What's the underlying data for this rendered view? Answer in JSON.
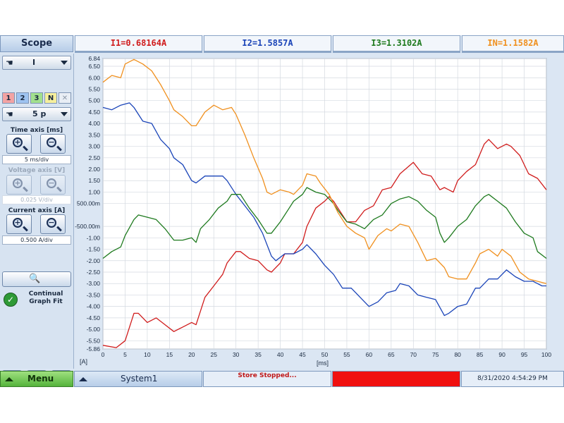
{
  "header": {
    "title": "Scope",
    "readouts": [
      {
        "label": "I1=0.68164A",
        "color": "#d01c1c"
      },
      {
        "label": "I2=1.5857A",
        "color": "#1a44b8"
      },
      {
        "label": "I3=1.3102A",
        "color": "#1e7a1e"
      },
      {
        "label": "IN=1.1582A",
        "color": "#f0901e"
      }
    ]
  },
  "sidebar": {
    "signal_select": "I",
    "channels": [
      "1",
      "2",
      "3",
      "N"
    ],
    "channel_colors": [
      "#f3a3a3",
      "#9ec3f0",
      "#a2e08e",
      "#f6ef9c"
    ],
    "period_select": "5 p",
    "time_axis": {
      "label": "Time axis [ms]",
      "value": "5 ms/div"
    },
    "voltage_axis": {
      "label": "Voltage axis [V]",
      "value": "0.025 V/div"
    },
    "current_axis": {
      "label": "Current axis [A]",
      "value": "0.500 A/div"
    },
    "continual_fit_label": "Continual Graph Fit"
  },
  "bottom": {
    "menu_label": "Menu",
    "system_label": "System1",
    "status_text": "Store Stopped...",
    "datetime": "8/31/2020 4:54:29 PM"
  },
  "chart_data": {
    "type": "line",
    "xlabel": "[ms]",
    "ylabel": "[A]",
    "xlim": [
      0,
      100
    ],
    "ylim": [
      -5.86,
      6.84
    ],
    "x_ticks": [
      "0",
      "5",
      "10",
      "15",
      "20",
      "25",
      "30",
      "35",
      "40",
      "45",
      "50",
      "55",
      "60",
      "65",
      "70",
      "75",
      "80",
      "85",
      "90",
      "95",
      "100"
    ],
    "y_ticks": [
      {
        "v": 6.84,
        "label": "6.84"
      },
      {
        "v": 6.5,
        "label": "6.50"
      },
      {
        "v": 6.0,
        "label": "6.00"
      },
      {
        "v": 5.5,
        "label": "5.50"
      },
      {
        "v": 5.0,
        "label": "5.00"
      },
      {
        "v": 4.5,
        "label": "4.50"
      },
      {
        "v": 4.0,
        "label": "4.00"
      },
      {
        "v": 3.5,
        "label": "3.50"
      },
      {
        "v": 3.0,
        "label": "3.00"
      },
      {
        "v": 2.5,
        "label": "2.50"
      },
      {
        "v": 2.0,
        "label": "2.00"
      },
      {
        "v": 1.5,
        "label": "1.50"
      },
      {
        "v": 1.0,
        "label": "1.00"
      },
      {
        "v": 0.5,
        "label": "500.00m"
      },
      {
        "v": -0.5,
        "label": "-500.00m"
      },
      {
        "v": -1.0,
        "label": "-1.00"
      },
      {
        "v": -1.5,
        "label": "-1.50"
      },
      {
        "v": -2.0,
        "label": "-2.00"
      },
      {
        "v": -2.5,
        "label": "-2.50"
      },
      {
        "v": -3.0,
        "label": "-3.00"
      },
      {
        "v": -3.5,
        "label": "-3.50"
      },
      {
        "v": -4.0,
        "label": "-4.00"
      },
      {
        "v": -4.5,
        "label": "-4.50"
      },
      {
        "v": -5.0,
        "label": "-5.00"
      },
      {
        "v": -5.5,
        "label": "-5.50"
      },
      {
        "v": -5.86,
        "label": "-5.86"
      }
    ],
    "grid": true,
    "series": [
      {
        "color": "#d01c1c",
        "values": [
          [
            0,
            -5.7
          ],
          [
            3,
            -5.8
          ],
          [
            5,
            -5.5
          ],
          [
            7,
            -4.3
          ],
          [
            8,
            -4.3
          ],
          [
            10,
            -4.7
          ],
          [
            12,
            -4.5
          ],
          [
            14,
            -4.8
          ],
          [
            16,
            -5.1
          ],
          [
            18,
            -4.9
          ],
          [
            20,
            -4.7
          ],
          [
            21,
            -4.8
          ],
          [
            23,
            -3.6
          ],
          [
            25,
            -3.1
          ],
          [
            27,
            -2.6
          ],
          [
            28,
            -2.1
          ],
          [
            30,
            -1.6
          ],
          [
            31,
            -1.6
          ],
          [
            33,
            -1.9
          ],
          [
            35,
            -2.0
          ],
          [
            37,
            -2.4
          ],
          [
            38,
            -2.5
          ],
          [
            40,
            -2.1
          ],
          [
            41,
            -1.7
          ],
          [
            43,
            -1.7
          ],
          [
            45,
            -1.2
          ],
          [
            46,
            -0.5
          ],
          [
            48,
            0.3
          ],
          [
            50,
            0.6
          ],
          [
            51,
            0.8
          ],
          [
            52,
            0.6
          ],
          [
            53,
            0.3
          ],
          [
            55,
            -0.3
          ],
          [
            57,
            -0.3
          ],
          [
            59,
            0.2
          ],
          [
            61,
            0.4
          ],
          [
            63,
            1.1
          ],
          [
            65,
            1.2
          ],
          [
            67,
            1.8
          ],
          [
            70,
            2.3
          ],
          [
            72,
            1.8
          ],
          [
            74,
            1.7
          ],
          [
            76,
            1.1
          ],
          [
            77,
            1.2
          ],
          [
            79,
            1.0
          ],
          [
            80,
            1.5
          ],
          [
            82,
            1.9
          ],
          [
            84,
            2.2
          ],
          [
            86,
            3.1
          ],
          [
            87,
            3.3
          ],
          [
            89,
            2.9
          ],
          [
            91,
            3.1
          ],
          [
            92,
            3.0
          ],
          [
            94,
            2.6
          ],
          [
            96,
            1.8
          ],
          [
            98,
            1.6
          ],
          [
            100,
            1.1
          ]
        ]
      },
      {
        "color": "#1a44b8",
        "values": [
          [
            0,
            4.7
          ],
          [
            2,
            4.6
          ],
          [
            4,
            4.8
          ],
          [
            6,
            4.9
          ],
          [
            7,
            4.7
          ],
          [
            9,
            4.1
          ],
          [
            11,
            4.0
          ],
          [
            13,
            3.3
          ],
          [
            15,
            2.9
          ],
          [
            16,
            2.5
          ],
          [
            18,
            2.2
          ],
          [
            20,
            1.5
          ],
          [
            21,
            1.4
          ],
          [
            23,
            1.7
          ],
          [
            25,
            1.7
          ],
          [
            27,
            1.7
          ],
          [
            28,
            1.5
          ],
          [
            30,
            0.9
          ],
          [
            32,
            0.4
          ],
          [
            34,
            -0.1
          ],
          [
            36,
            -0.8
          ],
          [
            38,
            -1.8
          ],
          [
            39,
            -2.0
          ],
          [
            41,
            -1.7
          ],
          [
            43,
            -1.7
          ],
          [
            45,
            -1.5
          ],
          [
            46,
            -1.3
          ],
          [
            48,
            -1.7
          ],
          [
            50,
            -2.2
          ],
          [
            52,
            -2.6
          ],
          [
            54,
            -3.2
          ],
          [
            56,
            -3.2
          ],
          [
            58,
            -3.6
          ],
          [
            60,
            -4.0
          ],
          [
            62,
            -3.8
          ],
          [
            64,
            -3.4
          ],
          [
            66,
            -3.3
          ],
          [
            67,
            -3.0
          ],
          [
            69,
            -3.1
          ],
          [
            71,
            -3.5
          ],
          [
            73,
            -3.6
          ],
          [
            75,
            -3.7
          ],
          [
            77,
            -4.4
          ],
          [
            78,
            -4.3
          ],
          [
            80,
            -4.0
          ],
          [
            82,
            -3.9
          ],
          [
            84,
            -3.2
          ],
          [
            85,
            -3.2
          ],
          [
            87,
            -2.8
          ],
          [
            89,
            -2.8
          ],
          [
            91,
            -2.4
          ],
          [
            93,
            -2.7
          ],
          [
            95,
            -2.9
          ],
          [
            97,
            -2.9
          ],
          [
            99,
            -3.1
          ],
          [
            100,
            -3.1
          ]
        ]
      },
      {
        "color": "#1e7a1e",
        "values": [
          [
            0,
            -1.9
          ],
          [
            2,
            -1.6
          ],
          [
            4,
            -1.4
          ],
          [
            5,
            -0.9
          ],
          [
            7,
            -0.2
          ],
          [
            8,
            0.0
          ],
          [
            10,
            -0.1
          ],
          [
            12,
            -0.2
          ],
          [
            14,
            -0.6
          ],
          [
            16,
            -1.1
          ],
          [
            18,
            -1.1
          ],
          [
            20,
            -1.0
          ],
          [
            21,
            -1.2
          ],
          [
            22,
            -0.6
          ],
          [
            24,
            -0.2
          ],
          [
            26,
            0.3
          ],
          [
            28,
            0.6
          ],
          [
            29,
            0.9
          ],
          [
            31,
            0.9
          ],
          [
            33,
            0.3
          ],
          [
            35,
            -0.2
          ],
          [
            37,
            -0.8
          ],
          [
            38,
            -0.8
          ],
          [
            40,
            -0.3
          ],
          [
            42,
            0.3
          ],
          [
            43,
            0.6
          ],
          [
            45,
            0.9
          ],
          [
            46,
            1.2
          ],
          [
            48,
            1.0
          ],
          [
            50,
            0.9
          ],
          [
            52,
            0.5
          ],
          [
            53,
            0.2
          ],
          [
            55,
            -0.3
          ],
          [
            57,
            -0.4
          ],
          [
            59,
            -0.6
          ],
          [
            61,
            -0.2
          ],
          [
            63,
            0.0
          ],
          [
            65,
            0.5
          ],
          [
            67,
            0.7
          ],
          [
            69,
            0.8
          ],
          [
            71,
            0.6
          ],
          [
            73,
            0.2
          ],
          [
            75,
            -0.1
          ],
          [
            76,
            -0.8
          ],
          [
            77,
            -1.2
          ],
          [
            78,
            -1.0
          ],
          [
            80,
            -0.5
          ],
          [
            82,
            -0.2
          ],
          [
            84,
            0.4
          ],
          [
            86,
            0.8
          ],
          [
            87,
            0.9
          ],
          [
            89,
            0.6
          ],
          [
            91,
            0.3
          ],
          [
            93,
            -0.3
          ],
          [
            95,
            -0.8
          ],
          [
            97,
            -1.0
          ],
          [
            98,
            -1.6
          ],
          [
            100,
            -1.9
          ]
        ]
      },
      {
        "color": "#f0901e",
        "values": [
          [
            0,
            5.8
          ],
          [
            2,
            6.1
          ],
          [
            4,
            6.0
          ],
          [
            5,
            6.6
          ],
          [
            7,
            6.8
          ],
          [
            9,
            6.6
          ],
          [
            11,
            6.3
          ],
          [
            13,
            5.7
          ],
          [
            15,
            5.0
          ],
          [
            16,
            4.6
          ],
          [
            18,
            4.3
          ],
          [
            20,
            3.9
          ],
          [
            21,
            3.9
          ],
          [
            23,
            4.5
          ],
          [
            25,
            4.8
          ],
          [
            27,
            4.6
          ],
          [
            29,
            4.7
          ],
          [
            30,
            4.4
          ],
          [
            32,
            3.5
          ],
          [
            34,
            2.5
          ],
          [
            36,
            1.6
          ],
          [
            37,
            1.0
          ],
          [
            38,
            0.9
          ],
          [
            40,
            1.1
          ],
          [
            42,
            1.0
          ],
          [
            43,
            0.9
          ],
          [
            45,
            1.3
          ],
          [
            46,
            1.8
          ],
          [
            48,
            1.7
          ],
          [
            49,
            1.4
          ],
          [
            51,
            0.9
          ],
          [
            53,
            0.1
          ],
          [
            55,
            -0.5
          ],
          [
            57,
            -0.8
          ],
          [
            59,
            -1.0
          ],
          [
            60,
            -1.5
          ],
          [
            62,
            -0.9
          ],
          [
            64,
            -0.6
          ],
          [
            65,
            -0.7
          ],
          [
            67,
            -0.4
          ],
          [
            69,
            -0.5
          ],
          [
            71,
            -1.2
          ],
          [
            73,
            -2.0
          ],
          [
            75,
            -1.9
          ],
          [
            77,
            -2.3
          ],
          [
            78,
            -2.7
          ],
          [
            80,
            -2.8
          ],
          [
            82,
            -2.8
          ],
          [
            84,
            -2.1
          ],
          [
            85,
            -1.7
          ],
          [
            87,
            -1.5
          ],
          [
            89,
            -1.8
          ],
          [
            90,
            -1.5
          ],
          [
            92,
            -1.8
          ],
          [
            94,
            -2.5
          ],
          [
            96,
            -2.8
          ],
          [
            98,
            -2.9
          ],
          [
            100,
            -3.0
          ]
        ]
      }
    ]
  }
}
